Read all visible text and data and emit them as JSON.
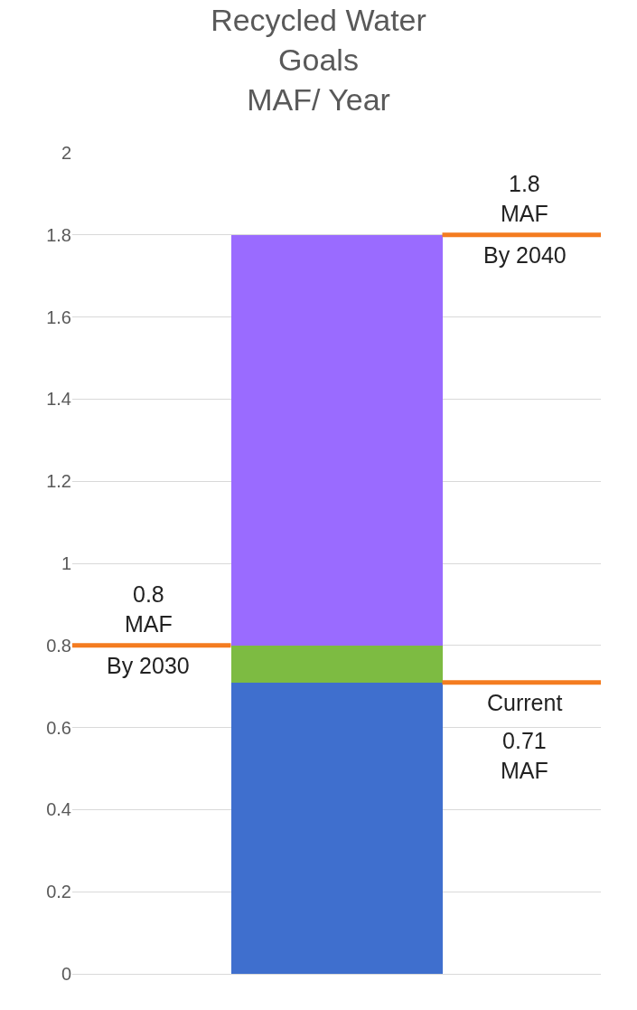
{
  "chart_data": {
    "type": "bar",
    "title": "Recycled Water\nGoals\nMAF/ Year",
    "categories": [
      null
    ],
    "stacked": true,
    "series": [
      {
        "color": "#3f6fce",
        "values": [
          0.71
        ]
      },
      {
        "color": "#7dbb42",
        "values": [
          0.09
        ]
      },
      {
        "color": "#9a6bff",
        "values": [
          1.0
        ]
      }
    ],
    "ylim": [
      0,
      2
    ],
    "yticks": [
      0,
      0.2,
      0.4,
      0.6,
      0.8,
      1,
      1.2,
      1.4,
      1.6,
      1.8,
      2
    ],
    "grid": "y",
    "tick_labels": "y",
    "ref_lines": [
      {
        "axis": "y",
        "value": 0.8,
        "label": "By 2030",
        "color": "#f47c20"
      },
      {
        "axis": "y",
        "value": 1.8,
        "label": "By 2040",
        "color": "#f47c20"
      },
      {
        "axis": "y",
        "value": 0.71,
        "label": "Current",
        "color": "#f47c20"
      }
    ],
    "annotations": [
      "0.8\nMAF",
      "1.8\nMAF",
      "0.71\nMAF"
    ]
  }
}
